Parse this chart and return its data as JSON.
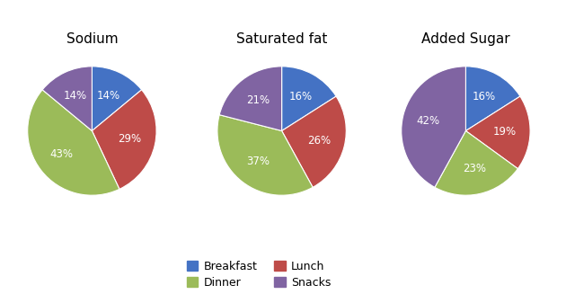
{
  "charts": [
    {
      "title": "Sodium",
      "values": [
        14,
        29,
        43,
        14
      ],
      "labels": [
        "14%",
        "29%",
        "43%",
        "14%"
      ],
      "order": [
        "Breakfast",
        "Lunch",
        "Dinner",
        "Snacks"
      ]
    },
    {
      "title": "Saturated fat",
      "values": [
        16,
        26,
        37,
        21
      ],
      "labels": [
        "16%",
        "26%",
        "37%",
        "21%"
      ],
      "order": [
        "Breakfast",
        "Lunch",
        "Dinner",
        "Snacks"
      ]
    },
    {
      "title": "Added Sugar",
      "values": [
        16,
        19,
        23,
        42
      ],
      "labels": [
        "16%",
        "19%",
        "23%",
        "42%"
      ],
      "order": [
        "Breakfast",
        "Lunch",
        "Dinner",
        "Snacks"
      ]
    }
  ],
  "colors": {
    "Breakfast": "#4472C4",
    "Lunch": "#BE4B48",
    "Dinner": "#9BBB59",
    "Snacks": "#8064A2"
  },
  "legend_order": [
    "Breakfast",
    "Dinner",
    "Lunch",
    "Snacks"
  ],
  "background_color": "#FFFFFF",
  "text_color": "#FFFFFF",
  "label_fontsize": 8.5,
  "title_fontsize": 11
}
